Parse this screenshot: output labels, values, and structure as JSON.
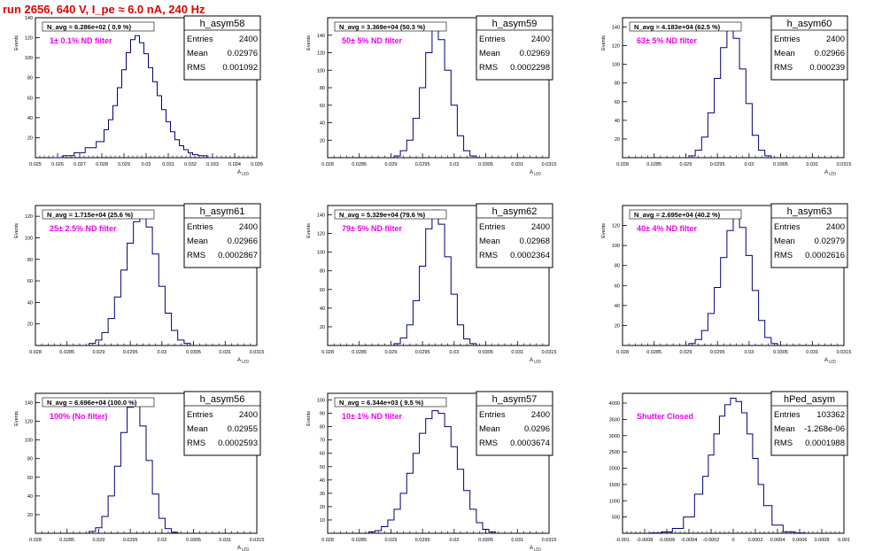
{
  "run_title": "run 2656,   640 V, I_pe ≈ 6.0 nA, 240 Hz",
  "colors": {
    "histogram": "#00007a",
    "filter_label": "#ee00ee",
    "title": "#e00000"
  },
  "chart_data": [
    {
      "type": "histogram",
      "name": "h_asym58",
      "stats": {
        "entries_label": "Entries",
        "entries": "2400",
        "mean_label": "Mean",
        "mean": "0.02976",
        "rms_label": "RMS",
        "rms": "0.001092"
      },
      "navg": "N_avg = 6.286e+02 ( 0.9 %)",
      "filter": "1± 0.1% ND filter",
      "ylabel": "Events",
      "xlabel": "A",
      "xlabel_sub": "LED",
      "xlim": [
        0.025,
        0.035
      ],
      "ylim": [
        0,
        140
      ],
      "xticks": [
        "0.025",
        "0.026",
        "0.027",
        "0.028",
        "0.029",
        "0.03",
        "0.031",
        "0.032",
        "0.033",
        "0.034",
        "0.035"
      ],
      "yticks": [
        "20",
        "40",
        "60",
        "80",
        "100",
        "120",
        "140"
      ],
      "x": [
        0.026,
        0.0265,
        0.027,
        0.0275,
        0.028,
        0.0282,
        0.0284,
        0.0286,
        0.0288,
        0.029,
        0.0292,
        0.0294,
        0.0296,
        0.0298,
        0.03,
        0.0302,
        0.0304,
        0.0306,
        0.0308,
        0.031,
        0.0312,
        0.0314,
        0.0316,
        0.0318,
        0.032,
        0.0322,
        0.0325,
        0.033
      ],
      "y": [
        0,
        2,
        5,
        10,
        16,
        28,
        38,
        52,
        70,
        88,
        105,
        118,
        122,
        115,
        104,
        90,
        76,
        62,
        48,
        36,
        26,
        18,
        12,
        8,
        5,
        3,
        2,
        0
      ]
    },
    {
      "type": "histogram",
      "name": "h_asym59",
      "stats": {
        "entries_label": "Entries",
        "entries": "2400",
        "mean_label": "Mean",
        "mean": "0.02969",
        "rms_label": "RMS",
        "rms": "0.0002298"
      },
      "navg": "N_avg = 3.369e+04 (50.3 %)",
      "filter": "50± 5% ND filter",
      "ylabel": "Events",
      "xlabel": "A",
      "xlabel_sub": "LED",
      "xlim": [
        0.028,
        0.0315
      ],
      "ylim": [
        0,
        160
      ],
      "xticks": [
        "0.028",
        "0.0285",
        "0.029",
        "0.0295",
        "0.03",
        "0.0305",
        "0.031",
        "0.0315"
      ],
      "yticks": [
        "20",
        "40",
        "60",
        "80",
        "100",
        "120",
        "140"
      ],
      "x": [
        0.0291,
        0.0292,
        0.0293,
        0.0294,
        0.0295,
        0.0296,
        0.0297,
        0.0298,
        0.0299,
        0.03,
        0.0301,
        0.0302,
        0.0303
      ],
      "y": [
        2,
        8,
        20,
        45,
        80,
        120,
        148,
        135,
        100,
        60,
        25,
        8,
        2
      ]
    },
    {
      "type": "histogram",
      "name": "h_asym60",
      "stats": {
        "entries_label": "Entries",
        "entries": "2400",
        "mean_label": "Mean",
        "mean": "0.02966",
        "rms_label": "RMS",
        "rms": "0.000239"
      },
      "navg": "N_avg = 4.183e+04 (62.5 %)",
      "filter": "63± 5% ND filter",
      "ylabel": "Events",
      "xlabel": "A",
      "xlabel_sub": "LED",
      "xlim": [
        0.028,
        0.0315
      ],
      "ylim": [
        0,
        150
      ],
      "xticks": [
        "0.028",
        "0.0285",
        "0.029",
        "0.0295",
        "0.03",
        "0.0305",
        "0.031",
        "0.0315"
      ],
      "yticks": [
        "20",
        "40",
        "60",
        "80",
        "100",
        "120",
        "140"
      ],
      "x": [
        0.0291,
        0.0292,
        0.0293,
        0.0294,
        0.0295,
        0.0296,
        0.0297,
        0.0298,
        0.0299,
        0.03,
        0.0301,
        0.0302,
        0.0303
      ],
      "y": [
        2,
        8,
        22,
        48,
        85,
        118,
        138,
        128,
        95,
        58,
        24,
        8,
        2
      ]
    },
    {
      "type": "histogram",
      "name": "h_asym61",
      "stats": {
        "entries_label": "Entries",
        "entries": "2400",
        "mean_label": "Mean",
        "mean": "0.02966",
        "rms_label": "RMS",
        "rms": "0.0002867"
      },
      "navg": "N_avg = 1.715e+04 (25.6 %)",
      "filter": "25± 2.5% ND filter",
      "ylabel": "Events",
      "xlabel": "A",
      "xlabel_sub": "LED",
      "xlim": [
        0.028,
        0.0315
      ],
      "ylim": [
        0,
        130
      ],
      "xticks": [
        "0.028",
        "0.0285",
        "0.029",
        "0.0295",
        "0.03",
        "0.0305",
        "0.031",
        "0.0315"
      ],
      "yticks": [
        "20",
        "40",
        "60",
        "80",
        "100",
        "120"
      ],
      "x": [
        0.0289,
        0.029,
        0.0291,
        0.0292,
        0.0293,
        0.0294,
        0.0295,
        0.0296,
        0.0297,
        0.0298,
        0.0299,
        0.03,
        0.0301,
        0.0302,
        0.0303,
        0.0304
      ],
      "y": [
        2,
        5,
        12,
        25,
        45,
        70,
        95,
        115,
        122,
        110,
        85,
        55,
        30,
        14,
        5,
        2
      ]
    },
    {
      "type": "histogram",
      "name": "h_asym62",
      "stats": {
        "entries_label": "Entries",
        "entries": "2400",
        "mean_label": "Mean",
        "mean": "0.02968",
        "rms_label": "RMS",
        "rms": "0.0002364"
      },
      "navg": "N_avg = 5.329e+04 (79.6 %)",
      "filter": "79± 5% ND filter",
      "ylabel": "Events",
      "xlabel": "A",
      "xlabel_sub": "LED",
      "xlim": [
        0.028,
        0.0315
      ],
      "ylim": [
        0,
        150
      ],
      "xticks": [
        "0.028",
        "0.0285",
        "0.029",
        "0.0295",
        "0.03",
        "0.0305",
        "0.031",
        "0.0315"
      ],
      "yticks": [
        "20",
        "40",
        "60",
        "80",
        "100",
        "120",
        "140"
      ],
      "x": [
        0.0291,
        0.0292,
        0.0293,
        0.0294,
        0.0295,
        0.0296,
        0.0297,
        0.0298,
        0.0299,
        0.03,
        0.0301,
        0.0302,
        0.0303
      ],
      "y": [
        2,
        8,
        22,
        48,
        85,
        125,
        145,
        130,
        95,
        55,
        22,
        7,
        2
      ]
    },
    {
      "type": "histogram",
      "name": "h_asym63",
      "stats": {
        "entries_label": "Entries",
        "entries": "2400",
        "mean_label": "Mean",
        "mean": "0.02979",
        "rms_label": "RMS",
        "rms": "0.0002616"
      },
      "navg": "N_avg = 2.695e+04 (40.2 %)",
      "filter": "40± 4% ND filter",
      "ylabel": "Events",
      "xlabel": "A",
      "xlabel_sub": "LED",
      "xlim": [
        0.028,
        0.0315
      ],
      "ylim": [
        0,
        140
      ],
      "xticks": [
        "0.028",
        "0.0285",
        "0.029",
        "0.0295",
        "0.03",
        "0.0305",
        "0.031",
        "0.0315"
      ],
      "yticks": [
        "20",
        "40",
        "60",
        "80",
        "100",
        "120"
      ],
      "x": [
        0.0291,
        0.0292,
        0.0293,
        0.0294,
        0.0295,
        0.0296,
        0.0297,
        0.0298,
        0.0299,
        0.03,
        0.0301,
        0.0302,
        0.0303,
        0.0304
      ],
      "y": [
        2,
        6,
        15,
        32,
        58,
        88,
        115,
        130,
        118,
        90,
        55,
        25,
        8,
        2
      ]
    },
    {
      "type": "histogram",
      "name": "h_asym56",
      "stats": {
        "entries_label": "Entries",
        "entries": "2400",
        "mean_label": "Mean",
        "mean": "0.02955",
        "rms_label": "RMS",
        "rms": "0.0002593"
      },
      "navg": "N_avg = 6.696e+04 (100.0 %)",
      "filter": "100% (No filter)",
      "ylabel": "Events",
      "xlabel": "A",
      "xlabel_sub": "LED",
      "xlim": [
        0.028,
        0.0315
      ],
      "ylim": [
        0,
        150
      ],
      "xticks": [
        "0.028",
        "0.0285",
        "0.029",
        "0.0295",
        "0.03",
        "0.0305",
        "0.031",
        "0.0315"
      ],
      "yticks": [
        "20",
        "40",
        "60",
        "80",
        "100",
        "120",
        "140"
      ],
      "x": [
        0.0289,
        0.029,
        0.0291,
        0.0292,
        0.0293,
        0.0294,
        0.0295,
        0.0296,
        0.0297,
        0.0298,
        0.0299,
        0.03,
        0.0301,
        0.0302
      ],
      "y": [
        2,
        6,
        18,
        40,
        72,
        108,
        135,
        140,
        115,
        78,
        42,
        16,
        5,
        1
      ]
    },
    {
      "type": "histogram",
      "name": "h_asym57",
      "stats": {
        "entries_label": "Entries",
        "entries": "2400",
        "mean_label": "Mean",
        "mean": "0.0296",
        "rms_label": "RMS",
        "rms": "0.0003674"
      },
      "navg": "N_avg = 6.344e+03 ( 9.5 %)",
      "filter": "10± 1% ND filter",
      "ylabel": "Events",
      "xlabel": "A",
      "xlabel_sub": "LED",
      "xlim": [
        0.028,
        0.0315
      ],
      "ylim": [
        0,
        105
      ],
      "xticks": [
        "0.028",
        "0.0285",
        "0.029",
        "0.0295",
        "0.03",
        "0.0305",
        "0.031",
        "0.0315"
      ],
      "yticks": [
        "10",
        "20",
        "30",
        "40",
        "50",
        "60",
        "70",
        "80",
        "90",
        "100"
      ],
      "x": [
        0.0287,
        0.0288,
        0.0289,
        0.029,
        0.0291,
        0.0292,
        0.0293,
        0.0294,
        0.0295,
        0.0296,
        0.0297,
        0.0298,
        0.0299,
        0.03,
        0.0301,
        0.0302,
        0.0303,
        0.0304,
        0.0305,
        0.0306
      ],
      "y": [
        1,
        2,
        5,
        10,
        18,
        30,
        45,
        60,
        75,
        86,
        92,
        90,
        80,
        65,
        48,
        32,
        18,
        8,
        3,
        1
      ]
    },
    {
      "type": "histogram",
      "name": "hPed_asym",
      "stats": {
        "entries_label": "Entries",
        "entries": "103362",
        "mean_label": "Mean",
        "mean": "-1.268e-06",
        "rms_label": "RMS",
        "rms": "0.0001988"
      },
      "navg": "",
      "filter": "Shutter Closed",
      "ylabel": "",
      "xlabel": "",
      "xlabel_sub": "",
      "xlim": [
        -0.001,
        0.001
      ],
      "ylim": [
        0,
        4300
      ],
      "xticks": [
        "-0.001",
        "-0.0008",
        "-0.0006",
        "-0.0004",
        "-0.0002",
        "0",
        "0.0002",
        "0.0004",
        "0.0006",
        "0.0008",
        "0.001"
      ],
      "yticks": [
        "500",
        "1000",
        "1500",
        "2000",
        "2500",
        "3000",
        "3500",
        "4000"
      ],
      "x": [
        -0.0007,
        -0.0006,
        -0.0005,
        -0.0004,
        -0.0003,
        -0.00025,
        -0.0002,
        -0.00015,
        -0.0001,
        -5e-05,
        0,
        5e-05,
        0.0001,
        0.00015,
        0.0002,
        0.00025,
        0.0003,
        0.0004,
        0.0005,
        0.0006
      ],
      "y": [
        10,
        40,
        150,
        500,
        1200,
        1750,
        2400,
        3050,
        3600,
        3950,
        4150,
        4050,
        3700,
        3050,
        2300,
        1500,
        850,
        250,
        50,
        10
      ]
    }
  ]
}
